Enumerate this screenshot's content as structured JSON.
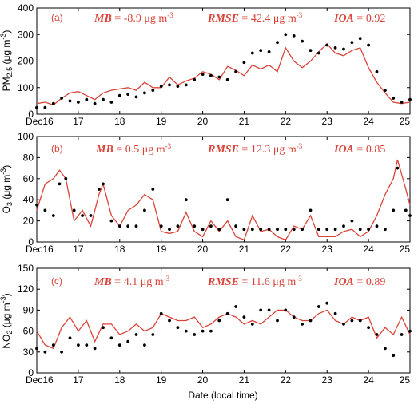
{
  "colors": {
    "model": "#d9443a",
    "obs": "#000000",
    "axis": "#000000"
  },
  "x_axis": {
    "label": "Date (local time)",
    "ticks": [
      16,
      17,
      18,
      19,
      20,
      21,
      22,
      23,
      24,
      25
    ],
    "tick_labels": [
      "Dec16",
      "17",
      "18",
      "19",
      "20",
      "21",
      "22",
      "23",
      "24",
      "25"
    ]
  },
  "chart_data": [
    {
      "type": "line",
      "panel_label": "(a)",
      "ylabel_main": "PM",
      "ylabel_sub": "2.5",
      "ylabel_unit": " (μg m",
      "ylabel_sup": "-3",
      "ylabel_end": ")",
      "ylim": [
        0,
        400
      ],
      "yticks": [
        0,
        100,
        200,
        300,
        400
      ],
      "xlim": [
        16,
        25
      ],
      "stats": [
        {
          "name": "MB",
          "value": "-8.9 μg m",
          "sup": "-3"
        },
        {
          "name": "RMSE",
          "value": "42.4 μg m",
          "sup": "-3"
        },
        {
          "name": "IOA",
          "value": "0.92",
          "sup": ""
        }
      ],
      "series": [
        {
          "style": "dots",
          "x": [
            16.0,
            16.2,
            16.4,
            16.6,
            16.8,
            17.0,
            17.2,
            17.4,
            17.6,
            17.8,
            18.0,
            18.2,
            18.4,
            18.6,
            18.8,
            19.0,
            19.2,
            19.4,
            19.6,
            19.8,
            20.0,
            20.2,
            20.4,
            20.6,
            20.8,
            21.0,
            21.2,
            21.4,
            21.6,
            21.8,
            22.0,
            22.2,
            22.4,
            22.6,
            22.8,
            23.0,
            23.2,
            23.4,
            23.6,
            23.8,
            24.0,
            24.2,
            24.4,
            24.6,
            24.8,
            25.0
          ],
          "y": [
            25,
            25,
            40,
            60,
            50,
            45,
            55,
            40,
            55,
            45,
            70,
            75,
            65,
            80,
            90,
            105,
            110,
            105,
            110,
            130,
            150,
            145,
            140,
            130,
            160,
            195,
            230,
            240,
            235,
            270,
            300,
            295,
            275,
            240,
            230,
            260,
            250,
            245,
            270,
            285,
            260,
            160,
            90,
            60,
            45,
            55
          ]
        },
        {
          "style": "line",
          "x": [
            16.0,
            16.2,
            16.4,
            16.6,
            16.8,
            17.0,
            17.2,
            17.4,
            17.6,
            17.8,
            18.0,
            18.2,
            18.4,
            18.6,
            18.8,
            19.0,
            19.2,
            19.4,
            19.6,
            19.8,
            20.0,
            20.2,
            20.4,
            20.6,
            20.8,
            21.0,
            21.2,
            21.4,
            21.6,
            21.8,
            22.0,
            22.2,
            22.4,
            22.6,
            22.8,
            23.0,
            23.2,
            23.4,
            23.6,
            23.8,
            24.0,
            24.2,
            24.4,
            24.6,
            24.8,
            25.0
          ],
          "y": [
            40,
            45,
            35,
            60,
            80,
            85,
            70,
            55,
            80,
            90,
            95,
            100,
            90,
            120,
            100,
            100,
            140,
            110,
            125,
            135,
            160,
            150,
            130,
            180,
            165,
            145,
            185,
            170,
            185,
            160,
            250,
            200,
            175,
            200,
            235,
            265,
            230,
            220,
            240,
            250,
            175,
            120,
            80,
            45,
            40,
            45
          ]
        }
      ]
    },
    {
      "type": "line",
      "panel_label": "(b)",
      "ylabel_main": "O",
      "ylabel_sub": "3",
      "ylabel_unit": " (μg m",
      "ylabel_sup": "-3",
      "ylabel_end": ")",
      "ylim": [
        0,
        100
      ],
      "yticks": [
        0,
        20,
        40,
        60,
        80,
        100
      ],
      "xlim": [
        16,
        25
      ],
      "stats": [
        {
          "name": "MB",
          "value": "0.5 μg m",
          "sup": "-3"
        },
        {
          "name": "RMSE",
          "value": "12.3 μg m",
          "sup": "-3"
        },
        {
          "name": "IOA",
          "value": "0.85",
          "sup": ""
        }
      ],
      "series": [
        {
          "style": "dots",
          "x": [
            16.0,
            16.2,
            16.4,
            16.55,
            16.7,
            16.9,
            17.1,
            17.3,
            17.5,
            17.6,
            17.8,
            18.0,
            18.2,
            18.4,
            18.6,
            18.8,
            19.0,
            19.2,
            19.4,
            19.6,
            19.8,
            20.0,
            20.2,
            20.4,
            20.6,
            20.8,
            21.0,
            21.2,
            21.4,
            21.6,
            21.8,
            22.0,
            22.2,
            22.4,
            22.6,
            22.8,
            23.0,
            23.2,
            23.4,
            23.6,
            23.8,
            24.0,
            24.2,
            24.4,
            24.6,
            24.7,
            24.9,
            25.0
          ],
          "y": [
            35,
            30,
            25,
            55,
            60,
            30,
            25,
            25,
            50,
            55,
            20,
            15,
            15,
            15,
            30,
            50,
            15,
            12,
            15,
            40,
            15,
            12,
            15,
            12,
            40,
            15,
            12,
            12,
            12,
            12,
            12,
            12,
            12,
            12,
            30,
            12,
            12,
            12,
            15,
            20,
            12,
            12,
            15,
            12,
            30,
            70,
            30,
            25
          ]
        },
        {
          "style": "line",
          "x": [
            16.0,
            16.2,
            16.4,
            16.55,
            16.7,
            16.9,
            17.1,
            17.3,
            17.5,
            17.6,
            17.8,
            18.0,
            18.2,
            18.4,
            18.6,
            18.8,
            19.0,
            19.2,
            19.4,
            19.6,
            19.8,
            20.0,
            20.2,
            20.4,
            20.6,
            20.8,
            21.0,
            21.2,
            21.4,
            21.6,
            21.8,
            22.0,
            22.2,
            22.4,
            22.6,
            22.8,
            23.0,
            23.2,
            23.4,
            23.6,
            23.8,
            24.0,
            24.2,
            24.4,
            24.6,
            24.7,
            24.9,
            25.0
          ],
          "y": [
            30,
            55,
            60,
            68,
            60,
            20,
            30,
            15,
            45,
            55,
            25,
            15,
            30,
            35,
            45,
            40,
            10,
            8,
            10,
            28,
            10,
            5,
            20,
            10,
            20,
            5,
            2,
            25,
            10,
            12,
            5,
            2,
            15,
            12,
            25,
            5,
            5,
            5,
            10,
            12,
            5,
            10,
            25,
            45,
            60,
            78,
            50,
            35
          ]
        }
      ]
    },
    {
      "type": "line",
      "panel_label": "(c)",
      "ylabel_main": "NO",
      "ylabel_sub": "2",
      "ylabel_unit": " (μg m",
      "ylabel_sup": "-3",
      "ylabel_end": ")",
      "ylim": [
        0,
        150
      ],
      "yticks": [
        0,
        30,
        60,
        90,
        120,
        150
      ],
      "xlim": [
        16,
        25
      ],
      "stats": [
        {
          "name": "MB",
          "value": "4.1 μg m",
          "sup": "-3"
        },
        {
          "name": "RMSE",
          "value": "11.6 μg m",
          "sup": "-3"
        },
        {
          "name": "IOA",
          "value": "0.89",
          "sup": ""
        }
      ],
      "series": [
        {
          "style": "dots",
          "x": [
            16.0,
            16.2,
            16.4,
            16.6,
            16.8,
            17.0,
            17.2,
            17.4,
            17.6,
            17.8,
            18.0,
            18.2,
            18.4,
            18.6,
            18.8,
            19.0,
            19.2,
            19.4,
            19.6,
            19.8,
            20.0,
            20.2,
            20.4,
            20.6,
            20.8,
            21.0,
            21.2,
            21.4,
            21.6,
            21.8,
            22.0,
            22.2,
            22.4,
            22.6,
            22.8,
            23.0,
            23.2,
            23.4,
            23.6,
            23.8,
            24.0,
            24.2,
            24.4,
            24.6,
            24.8,
            25.0
          ],
          "y": [
            35,
            30,
            40,
            30,
            50,
            40,
            40,
            35,
            65,
            50,
            40,
            45,
            55,
            40,
            55,
            85,
            75,
            65,
            60,
            55,
            60,
            60,
            75,
            85,
            95,
            80,
            70,
            90,
            90,
            75,
            90,
            80,
            70,
            75,
            95,
            100,
            85,
            70,
            75,
            75,
            65,
            55,
            35,
            25,
            55,
            60
          ]
        },
        {
          "style": "line",
          "x": [
            16.0,
            16.2,
            16.4,
            16.6,
            16.8,
            17.0,
            17.2,
            17.4,
            17.6,
            17.8,
            18.0,
            18.2,
            18.4,
            18.6,
            18.8,
            19.0,
            19.2,
            19.4,
            19.6,
            19.8,
            20.0,
            20.2,
            20.4,
            20.6,
            20.8,
            21.0,
            21.2,
            21.4,
            21.6,
            21.8,
            22.0,
            22.2,
            22.4,
            22.6,
            22.8,
            23.0,
            23.2,
            23.4,
            23.6,
            23.8,
            24.0,
            24.2,
            24.4,
            24.6,
            24.8,
            25.0
          ],
          "y": [
            60,
            40,
            35,
            65,
            80,
            60,
            75,
            45,
            70,
            70,
            55,
            60,
            70,
            60,
            65,
            85,
            80,
            75,
            75,
            80,
            65,
            70,
            80,
            85,
            80,
            70,
            75,
            70,
            80,
            90,
            90,
            80,
            75,
            75,
            85,
            90,
            75,
            70,
            80,
            75,
            80,
            50,
            65,
            55,
            80,
            55
          ]
        }
      ]
    }
  ]
}
